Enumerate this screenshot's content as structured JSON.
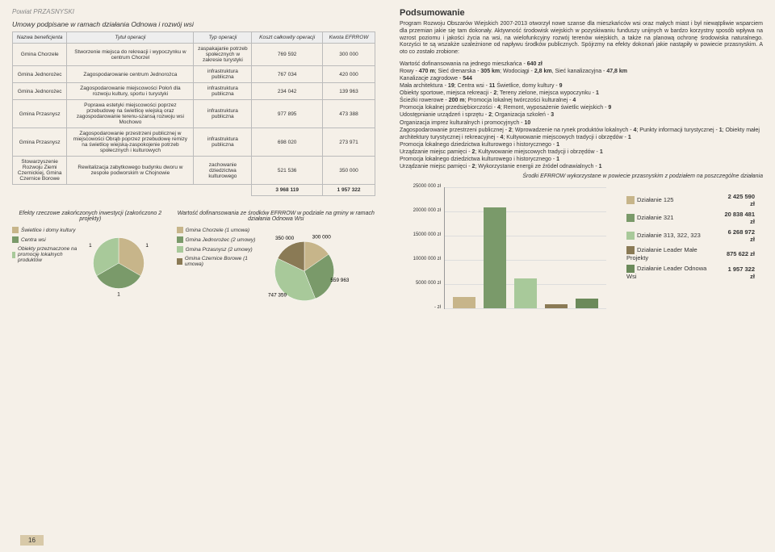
{
  "header": "Powiat PRZASNYSKI",
  "table_title": "Umowy podpisane w ramach działania Odnowa i rozwój wsi",
  "columns": [
    "Nazwa beneficjenta",
    "Tytuł operacji",
    "Typ operacji",
    "Koszt całkowity operacji",
    "Kwota EFRROW"
  ],
  "rows": [
    {
      "b": "Gmina Chorzele",
      "t": "Stworzenie miejsca do rekreacji i wypoczynku w centrum Chorzel",
      "ty": "zaspakajanie potrzeb społecznych w zakresie turystyki",
      "k": "769 592",
      "e": "300 000"
    },
    {
      "b": "Gmina Jednorożec",
      "t": "Zagospodarowanie centrum Jednorożca",
      "ty": "infrastruktura publiczna",
      "k": "767 034",
      "e": "420 000"
    },
    {
      "b": "Gmina Jednorożec",
      "t": "Zagospodarowanie miejscowości Połoń dla rozwoju kultury, sportu i turystyki",
      "ty": "infrastruktura publiczna",
      "k": "234 042",
      "e": "139 963"
    },
    {
      "b": "Gmina Przasnysz",
      "t": "Poprawa estetyki miejscowości poprzez przebudowę na świetlicę wiejską oraz zagospodarowanie terenu-szansą rozwoju wsi Mochowo",
      "ty": "infrastruktura publiczna",
      "k": "977 895",
      "e": "473 388"
    },
    {
      "b": "Gmina Przasnysz",
      "t": "Zagospodarowanie przestrzeni publicznej w miejscowości Obrąb poprzez przebudowę remizy na świetlicę wiejską-zaspokojenie potrzeb społecznych i kulturowych",
      "ty": "infrastruktura publiczna",
      "k": "698 020",
      "e": "273 971"
    },
    {
      "b": "Stowarzyszenie Rozwoju Ziemi Czernickiej, Gmina Czernice Borowe",
      "t": "Rewitalizacja zabytkowego budynku dworu w zespole podworskim w Chojnowie",
      "ty": "zachowanie dziedzictwa kulturowego",
      "k": "521 536",
      "e": "350 000"
    }
  ],
  "total": {
    "k": "3 968 119",
    "e": "1 957 322"
  },
  "left_chart1_title": "Efekty rzeczowe zakończonych inwestycji (zakończono 2 projekty)",
  "left_chart2_title": "Wartość dofinansowania ze środków EFRROW w podziale na gminy w ramach działania Odnowa Wsi",
  "pie1": {
    "legend": [
      {
        "c": "#c7b58a",
        "l": "Świetlice i domy kultury",
        "v": "1"
      },
      {
        "c": "#7a9a6a",
        "l": "Centra wsi",
        "v": "1"
      },
      {
        "c": "#a8c99a",
        "l": "Obiekty przeznaczone na promocję lokalnych produktów",
        "v": "1"
      }
    ],
    "slices": [
      {
        "c": "#c7b58a",
        "a": 120
      },
      {
        "c": "#7a9a6a",
        "a": 120
      },
      {
        "c": "#a8c99a",
        "a": 120
      }
    ],
    "labels": [
      "1",
      "1",
      "1"
    ]
  },
  "pie2": {
    "legend": [
      {
        "c": "#c7b58a",
        "l": "Gmina Chorzele (1 umowa)"
      },
      {
        "c": "#7a9a6a",
        "l": "Gmina Jednorożec (2 umowy)"
      },
      {
        "c": "#a8c99a",
        "l": "Gmina Przasnysz (2 umowy)"
      },
      {
        "c": "#8a7a55",
        "l": "Gmina Czernice Borowe (1 umowa)"
      }
    ],
    "slices": [
      {
        "c": "#c7b58a",
        "v": 300000,
        "lbl": "300 000"
      },
      {
        "c": "#7a9a6a",
        "v": 559963,
        "lbl": "559 963"
      },
      {
        "c": "#a8c99a",
        "v": 747359,
        "lbl": "747 359"
      },
      {
        "c": "#8a7a55",
        "v": 350000,
        "lbl": "350 000"
      }
    ]
  },
  "page_num": "16",
  "pod_title": "Podsumowanie",
  "pod_body": "Program Rozwoju Obszarów Wiejskich 2007-2013 otworzył nowe szanse dla mieszkańców wsi oraz małych miast i był niewątpliwie wsparciem dla przemian jakie się tam dokonały. Aktywność środowisk wiejskich w pozyskiwaniu funduszy unijnych w bardzo korzystny sposób wpływa na wzrost poziomu i jakości życia na wsi, na wielofunkcyjny rozwój terenów wiejskich, a także na planową ochronę środowiska naturalnego. Korzyści te są wszakże uzależnione od napływu środków publicznych. Spójrzmy na efekty dokonań jakie nastąpiły w powiecie przasnyskim. A oto co zostało zrobione:",
  "list_items": [
    "Wartość dofinansowania na jednego mieszkańca - <b>640 zł</b>",
    "Rowy - <b>470 m</b>; Sieć drenarska - <b>305 km</b>; Wodociągi - <b>2,8 km</b>, Sieć kanalizacyjna - <b>47,8 km</b>",
    "Kanalizacje zagrodowe - <b>544</b>",
    "Mała architektura - <b>19</b>; Centra wsi - <b>11</b> Świetlice, domy kultury - <b>9</b>",
    "Obiekty sportowe, miejsca rekreacji - <b>2</b>; Tereny zielone, miejsca wypoczynku - <b>1</b>",
    "Ścieżki rowerowe - <b>200 m</b>; Promocja lokalnej twórczości kulturalnej - <b>4</b>",
    "Promocja lokalnej przedsiębiorczości - <b>4</b>; Remont, wyposażenie świetlic wiejskich - <b>9</b>",
    "Udostępnianie urządzeń i sprzętu - <b>2</b>; Organizacja szkoleń - <b>3</b>",
    "Organizacja imprez kulturalnych i promocyjnych - <b>10</b>",
    "Zagospodarowanie przestrzeni publicznej - <b>2</b>; Wprowadzenie na rynek produktów lokalnych - <b>4</b>; Punkty informacji turystycznej - <b>1</b>; Obiekty małej architektury turystycznej i rekreacyjnej - <b>4</b>; Kultywowanie miejscowych tradycji i obrzędów - <b>1</b>",
    "Promocja lokalnego dziedzictwa kulturowego i historycznego - <b>1</b>",
    "Urządzanie miejsc pamięci - <b>2</b>; Kultywowanie miejscowych tradycji i obrzędów - <b>1</b>",
    "Promocja lokalnego dziedzictwa kulturowego i historycznego - <b>1</b>",
    "Urządzanie miejsc pamięci - <b>2</b>; Wykorzystanie energii ze źródeł odnawialnych - <b>1</b>"
  ],
  "foot_note": "Środki EFRROW wykorzystane w powiecie przasnyskim z podziałem na poszczególne działania",
  "bar_chart": {
    "ymax": 25000000,
    "ystep": 5000000,
    "yticks": [
      "- zł",
      "5000 000 zł",
      "10000 000 zł",
      "15000 000 zł",
      "20000 000 zł",
      "25000 000 zł"
    ],
    "bars": [
      {
        "c": "#c7b58a",
        "v": 2425590
      },
      {
        "c": "#7a9a6a",
        "v": 20838481
      },
      {
        "c": "#a8c99a",
        "v": 6268972
      },
      {
        "c": "#8a7a55",
        "v": 875622
      },
      {
        "c": "#6b8a5a",
        "v": 1957322
      }
    ]
  },
  "actions": [
    {
      "c": "#c7b58a",
      "l": "Działanie 125",
      "v": "2 425 590 zł"
    },
    {
      "c": "#7a9a6a",
      "l": "Działanie 321",
      "v": "20 838 481 zł"
    },
    {
      "c": "#a8c99a",
      "l": "Działanie 313, 322, 323",
      "v": "6 268 972 zł"
    },
    {
      "c": "#8a7a55",
      "l": "Działanie Leader Małe Projekty",
      "v": "875 622 zł"
    },
    {
      "c": "#6b8a5a",
      "l": "Działanie Leader Odnowa Wsi",
      "v": "1 957 322 zł"
    }
  ]
}
